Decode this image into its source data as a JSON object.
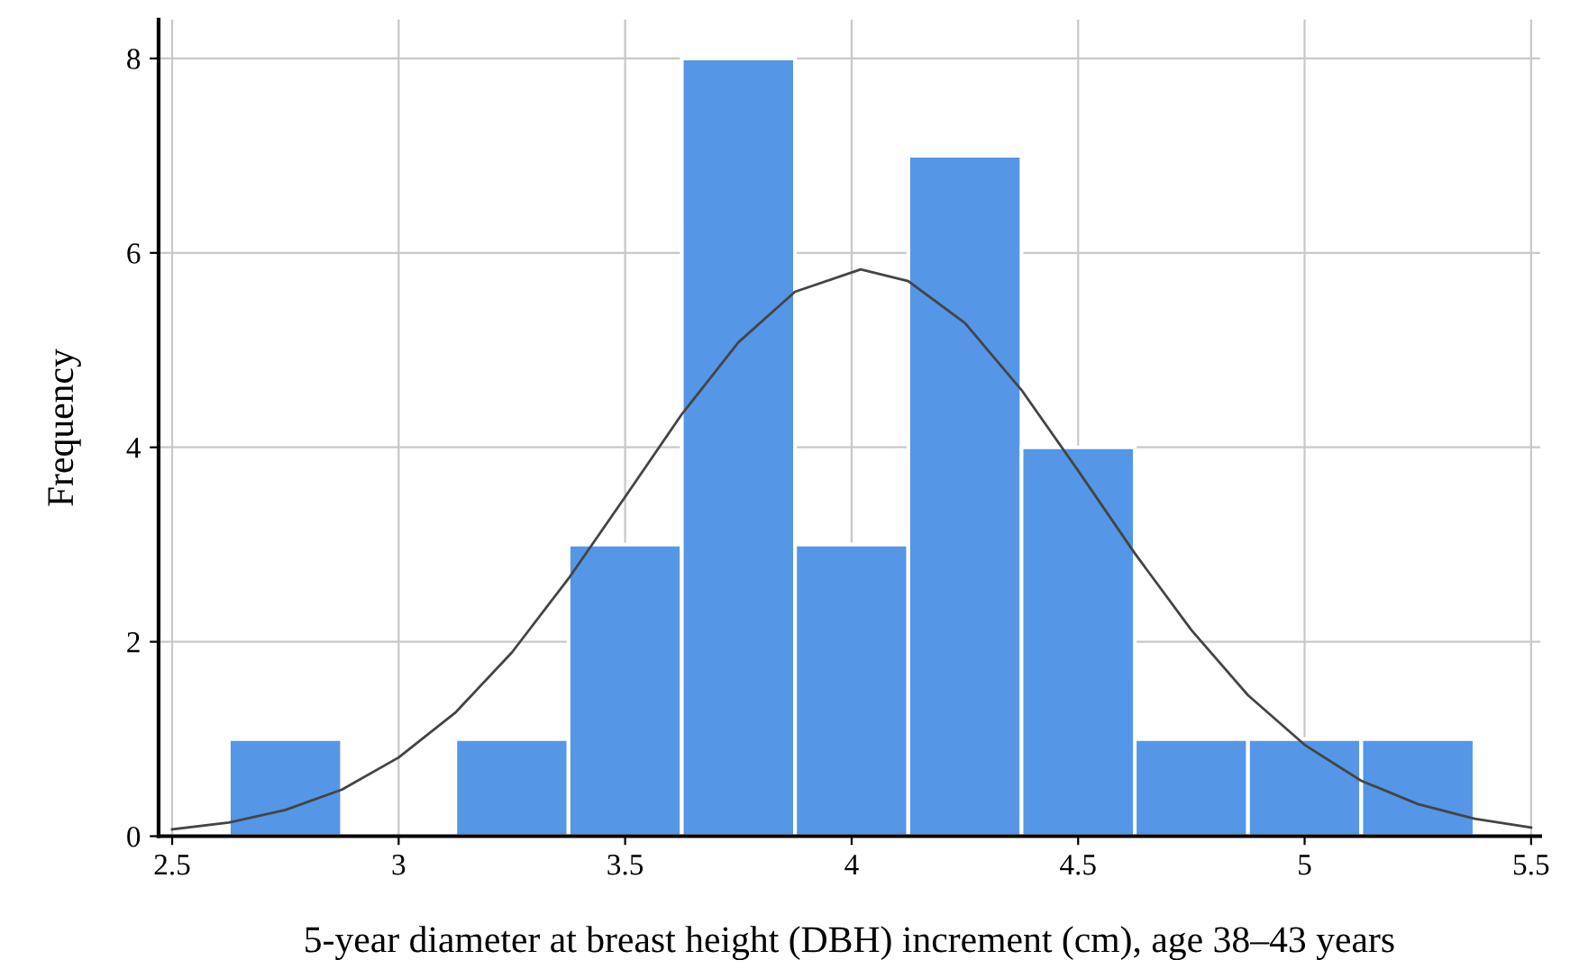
{
  "chart_data": {
    "type": "histogram",
    "xlabel": "5-year diameter at breast height (DBH) increment (cm), age 38–43 years",
    "ylabel": "Frequency",
    "bins": [
      2.625,
      2.875,
      3.125,
      3.375,
      3.625,
      3.875,
      4.125,
      4.375,
      4.625,
      4.875,
      5.125,
      5.375
    ],
    "values": [
      1,
      0,
      1,
      3,
      8,
      3,
      7,
      4,
      1,
      1,
      1
    ],
    "color": "#5596e6",
    "series": [
      {
        "type": "line",
        "color": "#444444",
        "x": [
          2.5,
          2.625,
          2.75,
          2.875,
          3.0,
          3.125,
          3.25,
          3.375,
          3.5,
          3.625,
          3.75,
          3.875,
          4.02,
          4.125,
          4.25,
          4.375,
          4.5,
          4.625,
          4.75,
          4.875,
          5.0,
          5.125,
          5.25,
          5.375,
          5.5
        ],
        "values": [
          0.07,
          0.14,
          0.27,
          0.48,
          0.81,
          1.27,
          1.89,
          2.65,
          3.49,
          4.34,
          5.08,
          5.6,
          5.83,
          5.71,
          5.28,
          4.59,
          3.76,
          2.91,
          2.12,
          1.45,
          0.94,
          0.57,
          0.33,
          0.18,
          0.09
        ]
      }
    ],
    "xlim": [
      2.47,
      5.52
    ],
    "ylim": [
      0,
      8.4
    ],
    "xticks": [
      2.5,
      3,
      3.5,
      4,
      4.5,
      5,
      5.5
    ],
    "yticks": [
      0,
      2,
      4,
      6,
      8
    ],
    "grid": true
  }
}
